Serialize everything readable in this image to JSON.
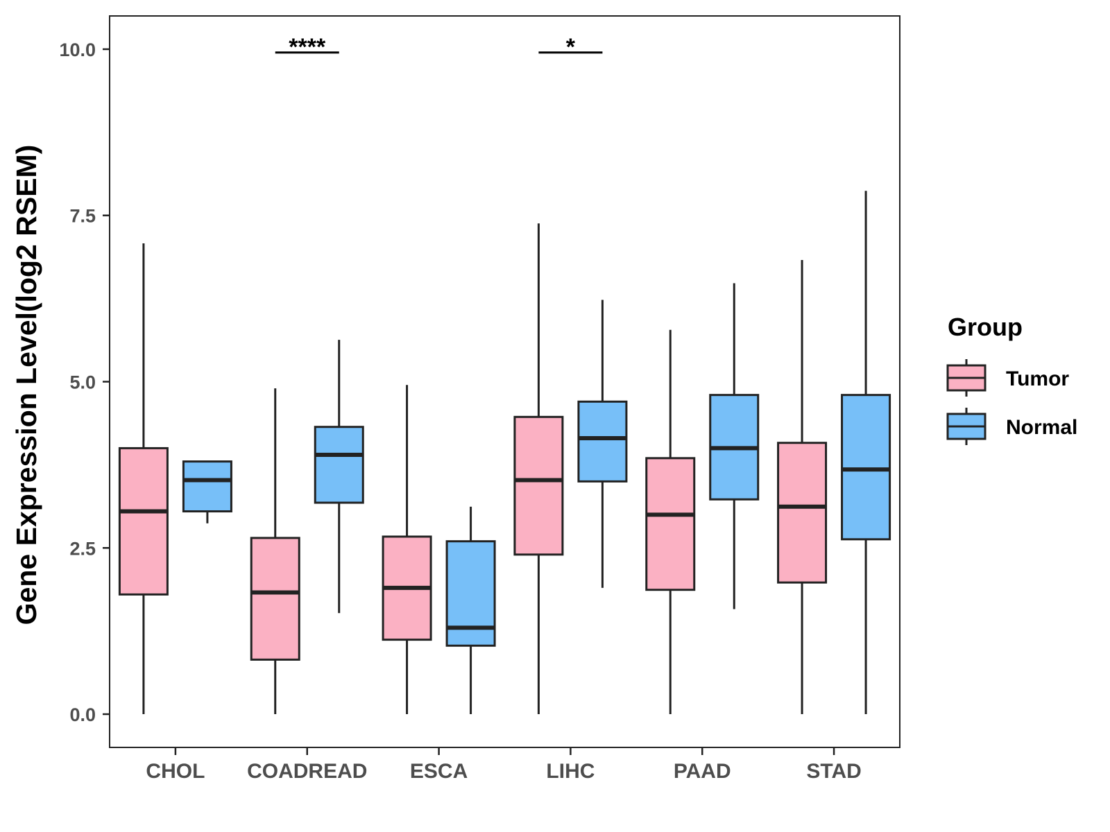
{
  "chart_data": {
    "type": "boxplot",
    "title": "",
    "xlabel": "",
    "ylabel": "Gene Expression Level(log2 RSEM)",
    "ylim": [
      -0.5,
      10.5
    ],
    "yticks": [
      0,
      2.5,
      5,
      7.5,
      10
    ],
    "ytick_labels": [
      "0.0",
      "2.5",
      "5.0",
      "7.5",
      "10.0"
    ],
    "grid": false,
    "legend_position": "right",
    "categories": [
      "CHOL",
      "COADREAD",
      "ESCA",
      "LIHC",
      "PAAD",
      "STAD"
    ],
    "series": [
      {
        "name": "Tumor",
        "color": "#fbb1c3",
        "boxes": [
          {
            "min": 0.0,
            "q1": 1.8,
            "median": 3.05,
            "q3": 4.0,
            "max": 7.08
          },
          {
            "min": 0.0,
            "q1": 0.82,
            "median": 1.83,
            "q3": 2.65,
            "max": 4.9
          },
          {
            "min": 0.0,
            "q1": 1.12,
            "median": 1.9,
            "q3": 2.67,
            "max": 4.95
          },
          {
            "min": 0.0,
            "q1": 2.4,
            "median": 3.52,
            "q3": 4.47,
            "max": 7.38
          },
          {
            "min": 0.0,
            "q1": 1.87,
            "median": 3.0,
            "q3": 3.85,
            "max": 5.78
          },
          {
            "min": 0.0,
            "q1": 1.98,
            "median": 3.12,
            "q3": 4.08,
            "max": 6.83
          }
        ]
      },
      {
        "name": "Normal",
        "color": "#77bff8",
        "boxes": [
          {
            "min": 2.87,
            "q1": 3.05,
            "median": 3.52,
            "q3": 3.8,
            "max": 3.8
          },
          {
            "min": 1.52,
            "q1": 3.18,
            "median": 3.9,
            "q3": 4.32,
            "max": 5.63
          },
          {
            "min": 0.0,
            "q1": 1.03,
            "median": 1.3,
            "q3": 2.6,
            "max": 3.12
          },
          {
            "min": 1.9,
            "q1": 3.5,
            "median": 4.15,
            "q3": 4.7,
            "max": 6.23
          },
          {
            "min": 1.58,
            "q1": 3.23,
            "median": 4.0,
            "q3": 4.8,
            "max": 6.48
          },
          {
            "min": 0.0,
            "q1": 2.63,
            "median": 3.68,
            "q3": 4.8,
            "max": 7.87
          }
        ]
      }
    ],
    "significance": [
      {
        "category": "COADREAD",
        "label": "****",
        "y": 9.95
      },
      {
        "category": "LIHC",
        "label": "*",
        "y": 9.95
      }
    ],
    "legend": {
      "title": "Group",
      "entries": [
        "Tumor",
        "Normal"
      ]
    }
  }
}
